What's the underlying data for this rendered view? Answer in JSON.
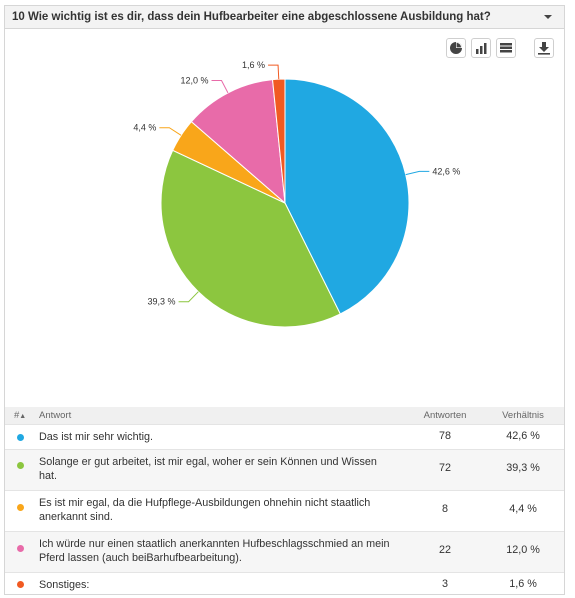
{
  "question": {
    "title": "10 Wie wichtig ist es dir, dass dein Hufbearbeiter eine abgeschlossene Ausbildung hat?"
  },
  "toolbar": {
    "icons": [
      "pie-chart-icon",
      "bar-chart-icon",
      "table-icon",
      "download-icon"
    ]
  },
  "chart_data": {
    "type": "pie",
    "categories": [
      "Das ist mir sehr wichtig.",
      "Solange er gut arbeitet, ist mir egal, woher er sein Können und Wissen hat.",
      "Es ist mir egal, da die Hufpflege-Ausbildungen ohnehin nicht staatlich anerkannt sind.",
      "Ich würde nur einen staatlich anerkannten Hufbeschlagsschmied an mein Pferd lassen (auch beiBarhufbearbeitung).",
      "Sonstiges:"
    ],
    "values": [
      42.6,
      39.3,
      4.4,
      12.0,
      1.6
    ],
    "labels": [
      "42,6 %",
      "39,3 %",
      "4,4 %",
      "12,0 %",
      "1,6 %"
    ],
    "colors": [
      "#20a8e2",
      "#8cc63f",
      "#f9a61a",
      "#e86ba9",
      "#f15a22"
    ],
    "title": "",
    "legend": "none"
  },
  "table": {
    "headers": {
      "num": "#",
      "answer": "Antwort",
      "count": "Antworten",
      "ratio": "Verhältnis"
    },
    "rows": [
      {
        "answer": "Das ist mir sehr wichtig.",
        "count": "78",
        "ratio": "42,6 %",
        "color": "#20a8e2"
      },
      {
        "answer": "Solange er gut arbeitet, ist mir egal, woher er sein Können und Wissen hat.",
        "count": "72",
        "ratio": "39,3 %",
        "color": "#8cc63f"
      },
      {
        "answer": "Es ist mir egal, da die Hufpflege-Ausbildungen ohnehin nicht staatlich anerkannt sind.",
        "count": "8",
        "ratio": "4,4 %",
        "color": "#f9a61a"
      },
      {
        "answer": "Ich würde nur einen staatlich anerkannten Hufbeschlagsschmied an mein Pferd lassen (auch beiBarhufbearbeitung).",
        "count": "22",
        "ratio": "12,0 %",
        "color": "#e86ba9"
      },
      {
        "answer": "Sonstiges:",
        "count": "3",
        "ratio": "1,6 %",
        "color": "#f15a22"
      }
    ]
  }
}
